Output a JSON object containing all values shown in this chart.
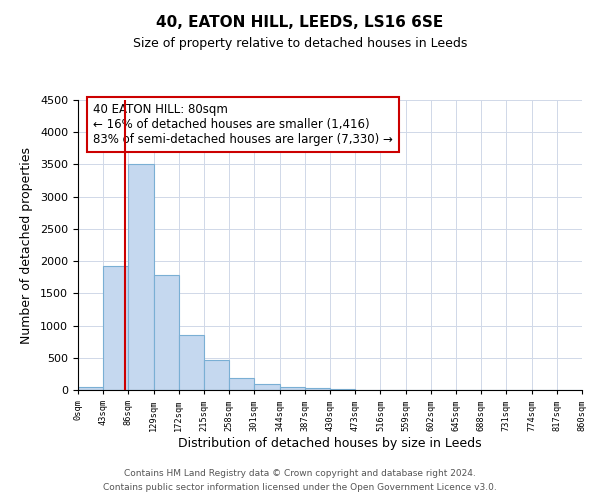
{
  "title": "40, EATON HILL, LEEDS, LS16 6SE",
  "subtitle": "Size of property relative to detached houses in Leeds",
  "xlabel": "Distribution of detached houses by size in Leeds",
  "ylabel": "Number of detached properties",
  "bar_edges": [
    0,
    43,
    86,
    129,
    172,
    215,
    258,
    301,
    344,
    387,
    430,
    473,
    516,
    559,
    602,
    645,
    688,
    731,
    774,
    817,
    860
  ],
  "bar_heights": [
    50,
    1920,
    3500,
    1780,
    860,
    460,
    185,
    95,
    45,
    25,
    10,
    5,
    0,
    0,
    0,
    0,
    0,
    0,
    0,
    0
  ],
  "bar_color": "#c5d8ef",
  "bar_edgecolor": "#7aafd4",
  "property_line_x": 80,
  "property_line_color": "#cc0000",
  "annotation_text": "40 EATON HILL: 80sqm\n← 16% of detached houses are smaller (1,416)\n83% of semi-detached houses are larger (7,330) →",
  "annotation_box_edgecolor": "#cc0000",
  "ylim": [
    0,
    4500
  ],
  "yticks": [
    0,
    500,
    1000,
    1500,
    2000,
    2500,
    3000,
    3500,
    4000,
    4500
  ],
  "tick_labels": [
    "0sqm",
    "43sqm",
    "86sqm",
    "129sqm",
    "172sqm",
    "215sqm",
    "258sqm",
    "301sqm",
    "344sqm",
    "387sqm",
    "430sqm",
    "473sqm",
    "516sqm",
    "559sqm",
    "602sqm",
    "645sqm",
    "688sqm",
    "731sqm",
    "774sqm",
    "817sqm",
    "860sqm"
  ],
  "footer_line1": "Contains HM Land Registry data © Crown copyright and database right 2024.",
  "footer_line2": "Contains public sector information licensed under the Open Government Licence v3.0.",
  "bg_color": "#ffffff",
  "grid_color": "#d0d8e8"
}
